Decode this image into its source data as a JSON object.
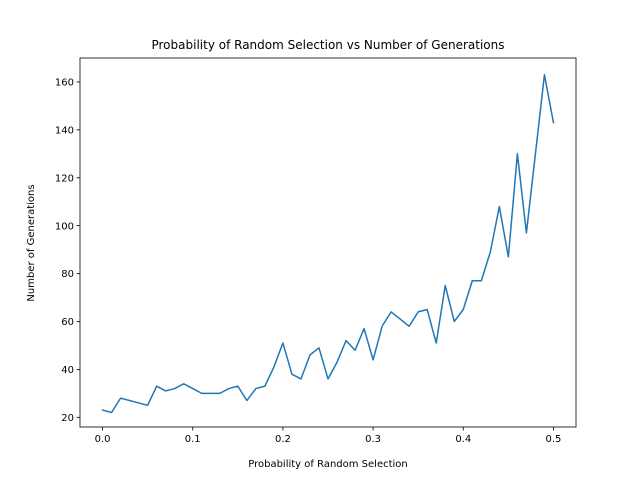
{
  "chart_data": {
    "type": "line",
    "title": "Probability of Random Selection vs Number of Generations",
    "xlabel": "Probability of Random Selection",
    "ylabel": "Number of Generations",
    "xlim": [
      -0.025,
      0.525
    ],
    "ylim": [
      15.95,
      170
    ],
    "x_ticks": [
      0.0,
      0.1,
      0.2,
      0.3,
      0.4,
      0.5
    ],
    "x_tick_labels": [
      "0.0",
      "0.1",
      "0.2",
      "0.3",
      "0.4",
      "0.5"
    ],
    "y_ticks": [
      20,
      40,
      60,
      80,
      100,
      120,
      140,
      160
    ],
    "y_tick_labels": [
      "20",
      "40",
      "60",
      "80",
      "100",
      "120",
      "140",
      "160"
    ],
    "grid": false,
    "series": [
      {
        "color": "#1f77b4",
        "x": [
          0.0,
          0.01,
          0.02,
          0.03,
          0.04,
          0.05,
          0.06,
          0.07,
          0.08,
          0.09,
          0.1,
          0.11,
          0.12,
          0.13,
          0.14,
          0.15,
          0.16,
          0.17,
          0.18,
          0.19,
          0.2,
          0.21,
          0.22,
          0.23,
          0.24,
          0.25,
          0.26,
          0.27,
          0.28,
          0.29,
          0.3,
          0.31,
          0.32,
          0.33,
          0.34,
          0.35,
          0.36,
          0.37,
          0.38,
          0.39,
          0.4,
          0.41,
          0.42,
          0.43,
          0.44,
          0.45,
          0.46,
          0.47,
          0.48,
          0.49,
          0.5
        ],
        "y": [
          23,
          22,
          28,
          27,
          26,
          25,
          33,
          31,
          32,
          34,
          32,
          30,
          30,
          30,
          32,
          33,
          27,
          32,
          33,
          41,
          51,
          38,
          36,
          46,
          49,
          36,
          43,
          52,
          48,
          57,
          44,
          58,
          64,
          61,
          58,
          64,
          65,
          51,
          75,
          60,
          65,
          77,
          77,
          89,
          108,
          87,
          130,
          97,
          130,
          163,
          143
        ]
      }
    ]
  }
}
